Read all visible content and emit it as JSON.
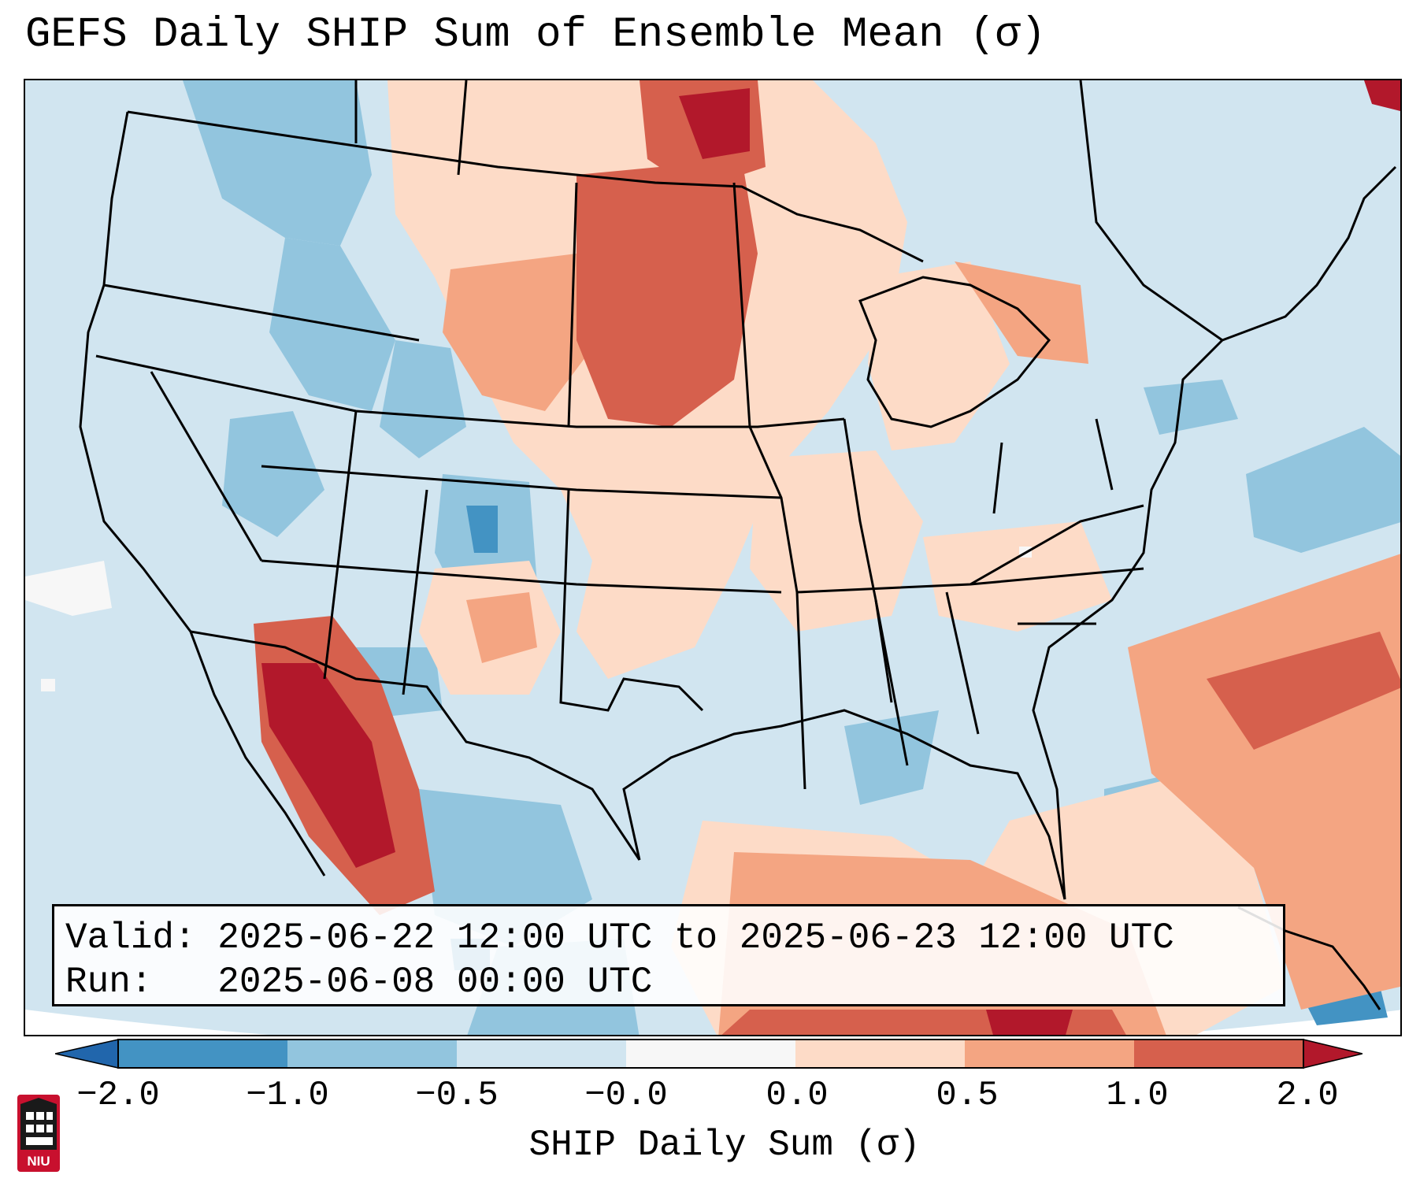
{
  "title": "GEFS Daily SHIP Sum of Ensemble Mean (σ)",
  "info": {
    "valid_line": "Valid: 2025-06-22 12:00 UTC to 2025-06-23 12:00 UTC",
    "run_line": "Run:   2025-06-08 00:00 UTC"
  },
  "colorbar": {
    "label": "SHIP Daily Sum (σ)",
    "ticks": [
      "−2.0",
      "−1.0",
      "−0.5",
      "−0.0",
      "0.0",
      "0.5",
      "1.0",
      "2.0"
    ],
    "bins": [
      {
        "range": "-2.0 to -1.0",
        "color": "#4393c3"
      },
      {
        "range": "-1.0 to -0.5",
        "color": "#92c5de"
      },
      {
        "range": "-0.5 to -0.0",
        "color": "#d1e5f0"
      },
      {
        "range": "-0.0 to 0.0",
        "color": "#f7f7f7"
      },
      {
        "range": "0.0 to 0.5",
        "color": "#fddbc7"
      },
      {
        "range": "0.5 to 1.0",
        "color": "#f4a582"
      },
      {
        "range": "1.0 to 2.0",
        "color": "#d6604d"
      }
    ],
    "under_color": "#2166ac",
    "over_color": "#b2182b"
  },
  "logo": {
    "text": "NIU",
    "color": "#c8102e"
  }
}
